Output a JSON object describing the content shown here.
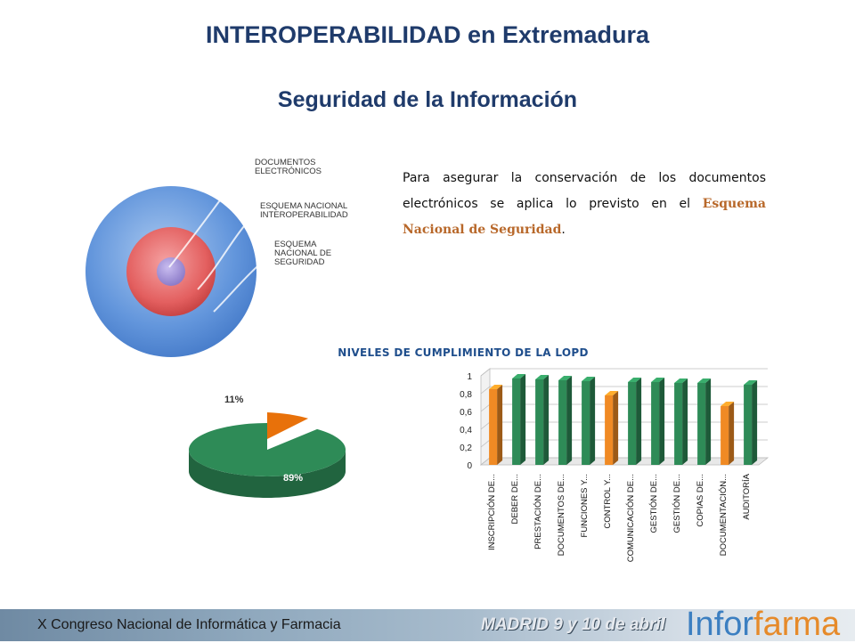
{
  "header": {
    "title": "INTEROPERABILIDAD en Extremadura",
    "subtitle": "Seguridad de la Información"
  },
  "diagram": {
    "labels": [
      "DOCUMENTOS ELECTRÓNICOS",
      "ESQUEMA NACIONAL INTEROPERABILIDAD",
      "ESQUEMA NACIONAL DE SEGURIDAD"
    ],
    "colors": {
      "outer": "#5b8fd6",
      "middle": "#e15a5a",
      "inner": "#9b8bd0"
    }
  },
  "paragraph": {
    "before": "Para asegurar la conservación de los documentos electrónicos se aplica lo previsto en el ",
    "highlight": "Esquema Nacional de Seguridad",
    "after": "."
  },
  "chart_data": [
    {
      "type": "pie",
      "title": "NIVELES DE CUMPLIMIENTO DE LA LOPD",
      "slices": [
        {
          "value": 89,
          "label": "89%",
          "color": "#2e8b57"
        },
        {
          "value": 11,
          "label": "11%",
          "color": "#e8710a"
        }
      ]
    },
    {
      "type": "bar",
      "categories": [
        "INSCRIPCIÓN DE...",
        "DEBER DE...",
        "PRESTACIÓN DE...",
        "DOCUMENTOS DE...",
        "FUNCIONES Y...",
        "CONTROL Y...",
        "COMUNICACIÓN DE...",
        "GESTIÓN DE...",
        "GESTIÓN DE...",
        "COPIAS DE...",
        "DOCUMENTACIÓN...",
        "AUDITORÍA"
      ],
      "values": [
        0.85,
        0.97,
        0.96,
        0.95,
        0.94,
        0.78,
        0.93,
        0.93,
        0.92,
        0.92,
        0.66,
        0.9
      ],
      "colors": [
        "#f08a24",
        "#2e8b57",
        "#2e8b57",
        "#2e8b57",
        "#2e8b57",
        "#f08a24",
        "#2e8b57",
        "#2e8b57",
        "#2e8b57",
        "#2e8b57",
        "#f08a24",
        "#2e8b57"
      ],
      "ylim": [
        0,
        1
      ],
      "yticks": [
        "0",
        "0,2",
        "0,4",
        "0,6",
        "0,8",
        "1"
      ],
      "grid": true
    }
  ],
  "footer": {
    "congress": "X Congreso Nacional de Informática y Farmacia",
    "event": "MADRID 9 y 10 de abril",
    "logo_a": "Infor",
    "logo_b": "farma"
  }
}
